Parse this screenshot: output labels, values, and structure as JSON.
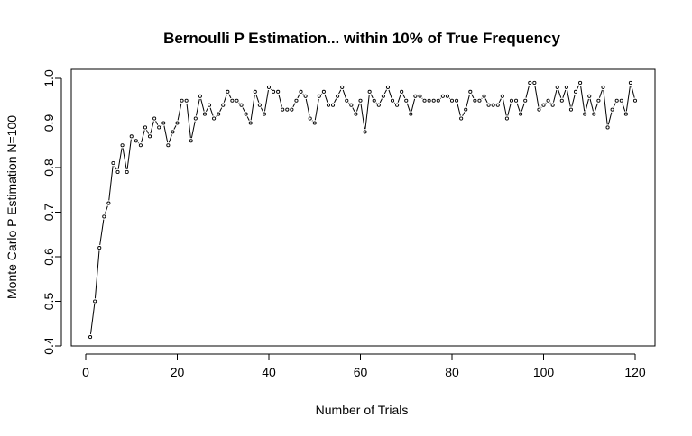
{
  "chart_data": {
    "type": "line",
    "title": "Bernoulli P Estimation... within 10% of True Frequency",
    "xlabel": "Number of Trials",
    "ylabel": "Monte Carlo P Estimation N=100",
    "xlim": [
      0,
      120
    ],
    "ylim": [
      0.4,
      1.0
    ],
    "x_ticks": [
      0,
      20,
      40,
      60,
      80,
      100,
      120
    ],
    "y_ticks": [
      0.4,
      0.5,
      0.6,
      0.7,
      0.8,
      0.9,
      1.0
    ],
    "x_tick_labels": [
      "0",
      "20",
      "40",
      "60",
      "80",
      "100",
      "120"
    ],
    "y_tick_labels": [
      "0.4",
      "0.5",
      "0.6",
      "0.7",
      "0.8",
      "0.9",
      "1.0"
    ],
    "grid": false,
    "series": [
      {
        "style": "points-and-lines",
        "color": "#000000",
        "x": [
          1,
          2,
          3,
          4,
          5,
          6,
          7,
          8,
          9,
          10,
          11,
          12,
          13,
          14,
          15,
          16,
          17,
          18,
          19,
          20,
          21,
          22,
          23,
          24,
          25,
          26,
          27,
          28,
          29,
          30,
          31,
          32,
          33,
          34,
          35,
          36,
          37,
          38,
          39,
          40,
          41,
          42,
          43,
          44,
          45,
          46,
          47,
          48,
          49,
          50,
          51,
          52,
          53,
          54,
          55,
          56,
          57,
          58,
          59,
          60,
          61,
          62,
          63,
          64,
          65,
          66,
          67,
          68,
          69,
          70,
          71,
          72,
          73,
          74,
          75,
          76,
          77,
          78,
          79,
          80,
          81,
          82,
          83,
          84,
          85,
          86,
          87,
          88,
          89,
          90,
          91,
          92,
          93,
          94,
          95,
          96,
          97,
          98,
          99,
          100,
          101,
          102,
          103,
          104,
          105,
          106,
          107,
          108,
          109,
          110,
          111,
          112,
          113,
          114,
          115,
          116,
          117,
          118,
          119,
          120
        ],
        "values": [
          0.42,
          0.5,
          0.62,
          0.69,
          0.72,
          0.81,
          0.79,
          0.85,
          0.79,
          0.87,
          0.86,
          0.85,
          0.89,
          0.87,
          0.91,
          0.89,
          0.9,
          0.85,
          0.88,
          0.9,
          0.95,
          0.95,
          0.86,
          0.91,
          0.96,
          0.92,
          0.94,
          0.91,
          0.92,
          0.94,
          0.97,
          0.95,
          0.95,
          0.94,
          0.92,
          0.9,
          0.97,
          0.94,
          0.92,
          0.98,
          0.97,
          0.97,
          0.93,
          0.93,
          0.93,
          0.95,
          0.97,
          0.96,
          0.91,
          0.9,
          0.96,
          0.97,
          0.94,
          0.94,
          0.96,
          0.98,
          0.95,
          0.94,
          0.92,
          0.95,
          0.88,
          0.97,
          0.95,
          0.94,
          0.96,
          0.98,
          0.95,
          0.94,
          0.97,
          0.95,
          0.92,
          0.96,
          0.96,
          0.95,
          0.95,
          0.95,
          0.95,
          0.96,
          0.96,
          0.95,
          0.95,
          0.91,
          0.93,
          0.97,
          0.95,
          0.95,
          0.96,
          0.94,
          0.94,
          0.94,
          0.96,
          0.91,
          0.95,
          0.95,
          0.92,
          0.95,
          0.99,
          0.99,
          0.93,
          0.94,
          0.95,
          0.94,
          0.98,
          0.95,
          0.98,
          0.93,
          0.97,
          0.99,
          0.92,
          0.96,
          0.92,
          0.95,
          0.98,
          0.89,
          0.93,
          0.95,
          0.95,
          0.92,
          0.99,
          0.95
        ]
      }
    ]
  }
}
